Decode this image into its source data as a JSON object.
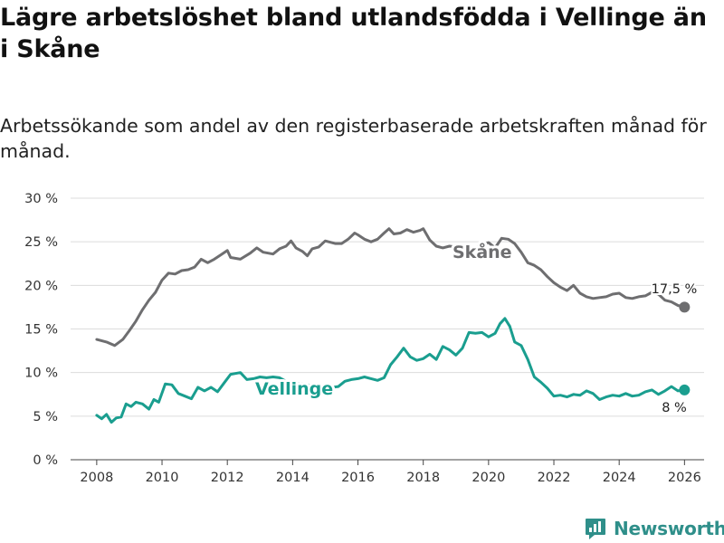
{
  "title": "Lägre arbetslöshet bland utlandsfödda i Vellinge än i Skåne",
  "subtitle": "Arbetssökande som andel av den registerbaserade arbetskraften månad för månad.",
  "brand": {
    "name": "Newsworthy",
    "icon": "newsworthy-logo-icon",
    "color": "#2f8f8a"
  },
  "chart_data": {
    "type": "line",
    "xlim": [
      2007.2,
      2026.6
    ],
    "ylim": [
      0,
      30
    ],
    "x_ticks": [
      {
        "value": 2008,
        "label": "2008"
      },
      {
        "value": 2010,
        "label": "2010"
      },
      {
        "value": 2012,
        "label": "2012"
      },
      {
        "value": 2014,
        "label": "2014"
      },
      {
        "value": 2016,
        "label": "2016"
      },
      {
        "value": 2018,
        "label": "2018"
      },
      {
        "value": 2020,
        "label": "2020"
      },
      {
        "value": 2022,
        "label": "2022"
      },
      {
        "value": 2024,
        "label": "2024"
      },
      {
        "value": 2026,
        "label": "2026"
      }
    ],
    "y_ticks": [
      {
        "value": 0,
        "label": "0 %"
      },
      {
        "value": 5,
        "label": "5 %"
      },
      {
        "value": 10,
        "label": "10 %"
      },
      {
        "value": 15,
        "label": "15 %"
      },
      {
        "value": 20,
        "label": "20 %"
      },
      {
        "value": 25,
        "label": "25 %"
      },
      {
        "value": 30,
        "label": "30 %"
      }
    ],
    "grid": true,
    "series": [
      {
        "name": "Skåne",
        "color": "#6e6e70",
        "points": [
          [
            2008.0,
            13.8
          ],
          [
            2008.3,
            13.5
          ],
          [
            2008.55,
            13.1
          ],
          [
            2008.8,
            13.8
          ],
          [
            2009.0,
            14.8
          ],
          [
            2009.2,
            15.9
          ],
          [
            2009.4,
            17.2
          ],
          [
            2009.6,
            18.3
          ],
          [
            2009.8,
            19.2
          ],
          [
            2010.0,
            20.6
          ],
          [
            2010.2,
            21.4
          ],
          [
            2010.4,
            21.3
          ],
          [
            2010.6,
            21.7
          ],
          [
            2010.8,
            21.8
          ],
          [
            2011.0,
            22.1
          ],
          [
            2011.2,
            23.0
          ],
          [
            2011.4,
            22.6
          ],
          [
            2011.6,
            23.0
          ],
          [
            2011.8,
            23.5
          ],
          [
            2012.0,
            24.0
          ],
          [
            2012.1,
            23.2
          ],
          [
            2012.4,
            23.0
          ],
          [
            2012.7,
            23.7
          ],
          [
            2012.9,
            24.3
          ],
          [
            2013.1,
            23.8
          ],
          [
            2013.4,
            23.6
          ],
          [
            2013.6,
            24.2
          ],
          [
            2013.8,
            24.5
          ],
          [
            2013.95,
            25.1
          ],
          [
            2014.1,
            24.3
          ],
          [
            2014.3,
            23.9
          ],
          [
            2014.45,
            23.4
          ],
          [
            2014.6,
            24.2
          ],
          [
            2014.8,
            24.4
          ],
          [
            2015.0,
            25.1
          ],
          [
            2015.3,
            24.8
          ],
          [
            2015.5,
            24.8
          ],
          [
            2015.7,
            25.3
          ],
          [
            2015.9,
            26.0
          ],
          [
            2016.0,
            25.8
          ],
          [
            2016.2,
            25.3
          ],
          [
            2016.4,
            25.0
          ],
          [
            2016.6,
            25.3
          ],
          [
            2016.8,
            26.0
          ],
          [
            2016.95,
            26.5
          ],
          [
            2017.1,
            25.9
          ],
          [
            2017.3,
            26.0
          ],
          [
            2017.5,
            26.4
          ],
          [
            2017.7,
            26.1
          ],
          [
            2017.9,
            26.3
          ],
          [
            2018.0,
            26.5
          ],
          [
            2018.2,
            25.2
          ],
          [
            2018.4,
            24.5
          ],
          [
            2018.6,
            24.3
          ],
          [
            2018.8,
            24.5
          ],
          [
            2019.0,
            24.4
          ],
          [
            2019.2,
            24.1
          ],
          [
            2019.5,
            24.0
          ],
          [
            2019.8,
            24.7
          ],
          [
            2020.0,
            24.9
          ],
          [
            2020.2,
            24.3
          ],
          [
            2020.4,
            25.4
          ],
          [
            2020.6,
            25.3
          ],
          [
            2020.8,
            24.8
          ],
          [
            2021.0,
            23.8
          ],
          [
            2021.2,
            22.6
          ],
          [
            2021.4,
            22.3
          ],
          [
            2021.6,
            21.8
          ],
          [
            2021.8,
            21.0
          ],
          [
            2022.0,
            20.3
          ],
          [
            2022.2,
            19.8
          ],
          [
            2022.4,
            19.4
          ],
          [
            2022.6,
            20.0
          ],
          [
            2022.8,
            19.1
          ],
          [
            2023.0,
            18.7
          ],
          [
            2023.2,
            18.5
          ],
          [
            2023.4,
            18.6
          ],
          [
            2023.6,
            18.7
          ],
          [
            2023.8,
            19.0
          ],
          [
            2024.0,
            19.1
          ],
          [
            2024.2,
            18.6
          ],
          [
            2024.4,
            18.5
          ],
          [
            2024.6,
            18.7
          ],
          [
            2024.8,
            18.8
          ],
          [
            2025.0,
            19.2
          ],
          [
            2025.2,
            19.0
          ],
          [
            2025.4,
            18.3
          ],
          [
            2025.6,
            18.1
          ],
          [
            2025.8,
            17.7
          ],
          [
            2026.0,
            17.5
          ]
        ],
        "label": "Skåne",
        "end_label": "17,5 %"
      },
      {
        "name": "Vellinge",
        "color": "#1a9e8f",
        "points": [
          [
            2008.0,
            5.1
          ],
          [
            2008.15,
            4.7
          ],
          [
            2008.3,
            5.2
          ],
          [
            2008.45,
            4.3
          ],
          [
            2008.6,
            4.8
          ],
          [
            2008.75,
            4.9
          ],
          [
            2008.9,
            6.4
          ],
          [
            2009.05,
            6.1
          ],
          [
            2009.2,
            6.6
          ],
          [
            2009.4,
            6.4
          ],
          [
            2009.6,
            5.8
          ],
          [
            2009.75,
            6.9
          ],
          [
            2009.9,
            6.6
          ],
          [
            2010.1,
            8.7
          ],
          [
            2010.3,
            8.6
          ],
          [
            2010.5,
            7.6
          ],
          [
            2010.7,
            7.3
          ],
          [
            2010.9,
            7.0
          ],
          [
            2011.1,
            8.3
          ],
          [
            2011.3,
            7.9
          ],
          [
            2011.5,
            8.3
          ],
          [
            2011.7,
            7.8
          ],
          [
            2011.9,
            8.8
          ],
          [
            2012.1,
            9.8
          ],
          [
            2012.4,
            10.0
          ],
          [
            2012.6,
            9.2
          ],
          [
            2012.8,
            9.3
          ],
          [
            2013.0,
            9.5
          ],
          [
            2013.2,
            9.4
          ],
          [
            2013.4,
            9.5
          ],
          [
            2013.6,
            9.4
          ],
          [
            2013.8,
            9.0
          ],
          [
            2014.0,
            8.8
          ],
          [
            2014.3,
            8.7
          ],
          [
            2014.6,
            8.5
          ],
          [
            2014.9,
            8.5
          ],
          [
            2015.2,
            8.3
          ],
          [
            2015.4,
            8.4
          ],
          [
            2015.6,
            9.0
          ],
          [
            2015.8,
            9.2
          ],
          [
            2016.0,
            9.3
          ],
          [
            2016.2,
            9.5
          ],
          [
            2016.4,
            9.3
          ],
          [
            2016.6,
            9.1
          ],
          [
            2016.8,
            9.4
          ],
          [
            2017.0,
            10.9
          ],
          [
            2017.2,
            11.8
          ],
          [
            2017.4,
            12.8
          ],
          [
            2017.6,
            11.8
          ],
          [
            2017.8,
            11.4
          ],
          [
            2018.0,
            11.6
          ],
          [
            2018.2,
            12.1
          ],
          [
            2018.4,
            11.5
          ],
          [
            2018.6,
            13.0
          ],
          [
            2018.8,
            12.6
          ],
          [
            2019.0,
            12.0
          ],
          [
            2019.2,
            12.8
          ],
          [
            2019.4,
            14.6
          ],
          [
            2019.6,
            14.5
          ],
          [
            2019.8,
            14.6
          ],
          [
            2020.0,
            14.1
          ],
          [
            2020.2,
            14.5
          ],
          [
            2020.35,
            15.6
          ],
          [
            2020.5,
            16.2
          ],
          [
            2020.65,
            15.3
          ],
          [
            2020.8,
            13.5
          ],
          [
            2021.0,
            13.1
          ],
          [
            2021.2,
            11.5
          ],
          [
            2021.4,
            9.5
          ],
          [
            2021.6,
            8.9
          ],
          [
            2021.8,
            8.2
          ],
          [
            2022.0,
            7.3
          ],
          [
            2022.2,
            7.4
          ],
          [
            2022.4,
            7.2
          ],
          [
            2022.6,
            7.5
          ],
          [
            2022.8,
            7.4
          ],
          [
            2023.0,
            7.9
          ],
          [
            2023.2,
            7.6
          ],
          [
            2023.4,
            6.9
          ],
          [
            2023.6,
            7.2
          ],
          [
            2023.8,
            7.4
          ],
          [
            2024.0,
            7.3
          ],
          [
            2024.2,
            7.6
          ],
          [
            2024.4,
            7.3
          ],
          [
            2024.6,
            7.4
          ],
          [
            2024.8,
            7.8
          ],
          [
            2025.0,
            8.0
          ],
          [
            2025.2,
            7.5
          ],
          [
            2025.4,
            7.9
          ],
          [
            2025.6,
            8.4
          ],
          [
            2025.8,
            7.9
          ],
          [
            2026.0,
            8.0
          ]
        ],
        "label": "Vellinge",
        "end_label": "8 %"
      }
    ]
  }
}
